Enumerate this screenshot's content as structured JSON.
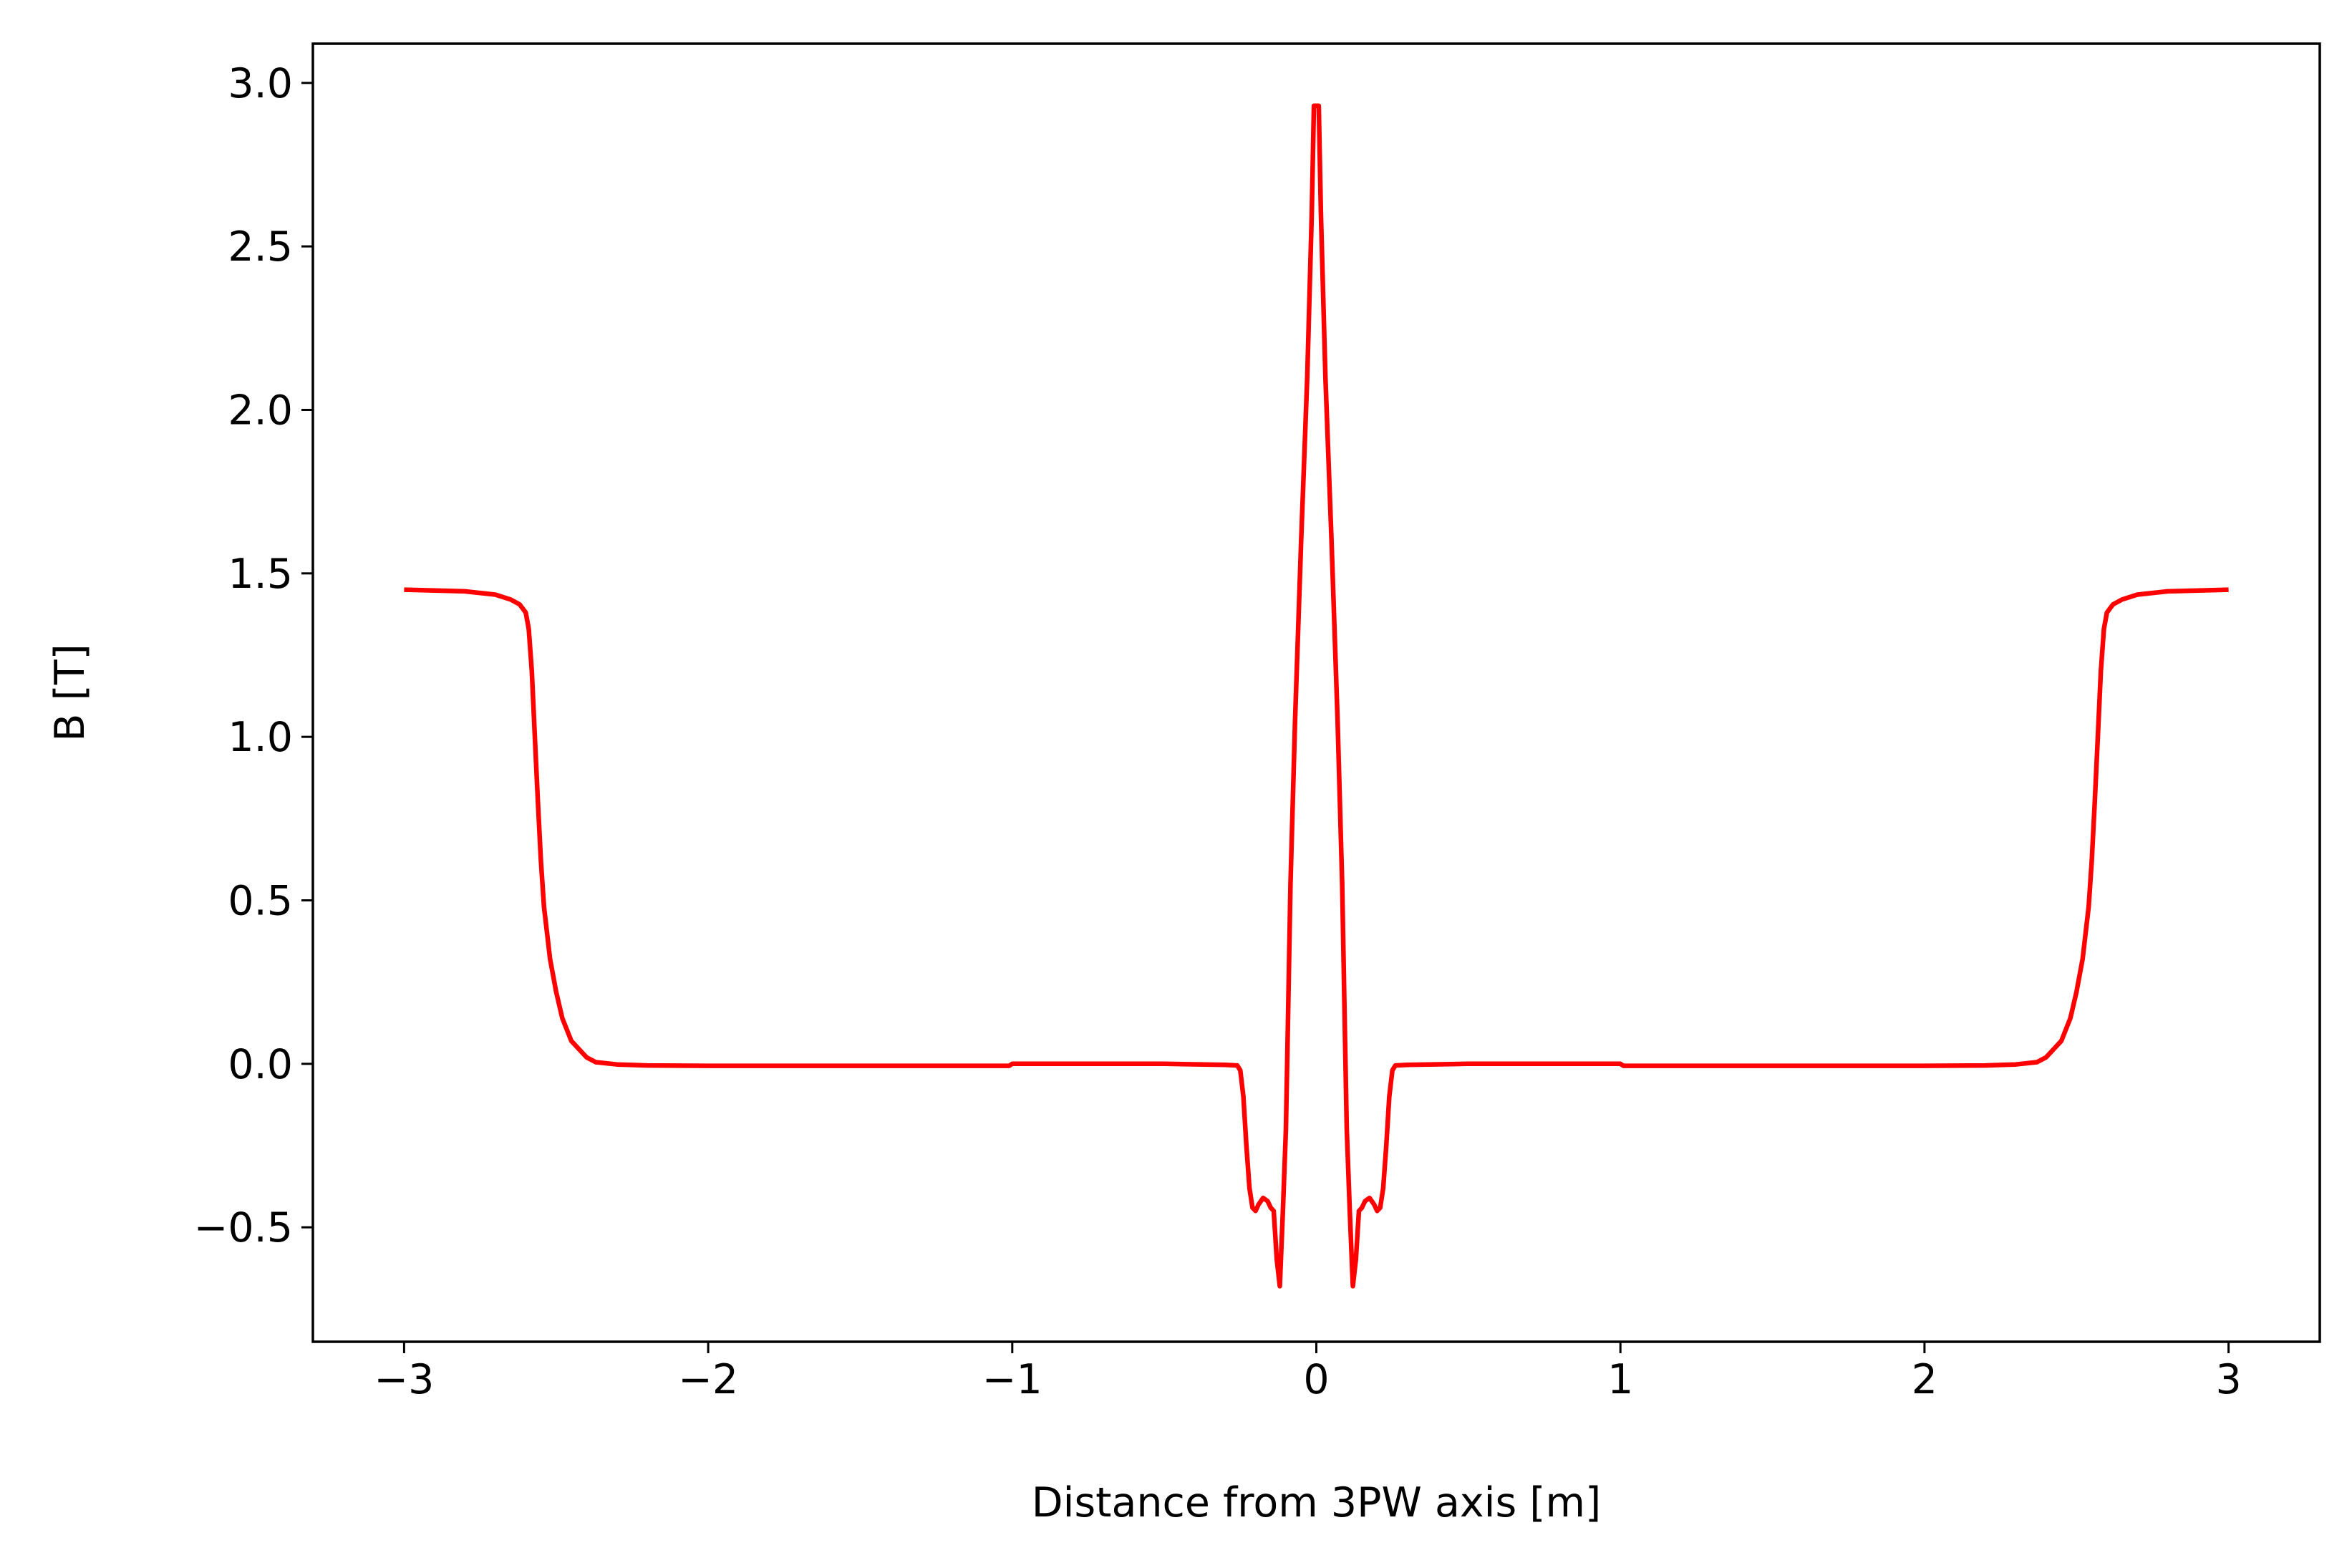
{
  "chart_data": {
    "type": "line",
    "title": "",
    "xlabel": "Distance from 3PW axis [m]",
    "ylabel": "B [T]",
    "xlim": [
      -3.3,
      3.3
    ],
    "ylim": [
      -0.85,
      3.12
    ],
    "xticks": [
      -3,
      -2,
      -1,
      0,
      1,
      2,
      3
    ],
    "xtick_labels": [
      "−3",
      "−2",
      "−1",
      "0",
      "1",
      "2",
      "3"
    ],
    "yticks": [
      -0.5,
      0.0,
      0.5,
      1.0,
      1.5,
      2.0,
      2.5,
      3.0
    ],
    "ytick_labels": [
      "−0.5",
      "0.0",
      "0.5",
      "1.0",
      "1.5",
      "2.0",
      "2.5",
      "3.0"
    ],
    "grid": false,
    "legend": "none",
    "series": [
      {
        "color": "#ff0000",
        "x": [
          -3.0,
          -2.8,
          -2.7,
          -2.65,
          -2.62,
          -2.6,
          -2.59,
          -2.58,
          -2.57,
          -2.56,
          -2.55,
          -2.54,
          -2.52,
          -2.5,
          -2.48,
          -2.45,
          -2.4,
          -2.37,
          -2.3,
          -2.2,
          -2.0,
          -1.5,
          -1.01,
          -1.0,
          -0.5,
          -0.3,
          -0.26,
          -0.25,
          -0.24,
          -0.23,
          -0.22,
          -0.21,
          -0.2,
          -0.19,
          -0.175,
          -0.16,
          -0.15,
          -0.14,
          -0.13,
          -0.12,
          -0.11,
          -0.1,
          -0.095,
          -0.09,
          -0.085,
          -0.07,
          -0.05,
          -0.03,
          -0.015,
          -0.008,
          0.0,
          0.008,
          0.015,
          0.03,
          0.05,
          0.07,
          0.085,
          0.09,
          0.095,
          0.1,
          0.11,
          0.12,
          0.13,
          0.14,
          0.15,
          0.16,
          0.175,
          0.19,
          0.2,
          0.21,
          0.22,
          0.23,
          0.24,
          0.25,
          0.26,
          0.3,
          0.5,
          1.0,
          1.01,
          1.5,
          2.0,
          2.2,
          2.3,
          2.37,
          2.4,
          2.45,
          2.48,
          2.5,
          2.52,
          2.54,
          2.55,
          2.56,
          2.57,
          2.58,
          2.59,
          2.6,
          2.62,
          2.65,
          2.7,
          2.8,
          3.0
        ],
        "y": [
          1.45,
          1.445,
          1.435,
          1.42,
          1.405,
          1.38,
          1.33,
          1.2,
          1.0,
          0.8,
          0.62,
          0.48,
          0.32,
          0.22,
          0.14,
          0.07,
          0.02,
          0.005,
          -0.002,
          -0.005,
          -0.006,
          -0.006,
          -0.006,
          0.0,
          0.0,
          -0.003,
          -0.005,
          -0.02,
          -0.1,
          -0.25,
          -0.38,
          -0.44,
          -0.45,
          -0.43,
          -0.41,
          -0.42,
          -0.44,
          -0.45,
          -0.6,
          -0.68,
          -0.45,
          -0.2,
          0.05,
          0.3,
          0.55,
          1.05,
          1.6,
          2.1,
          2.6,
          2.93,
          2.93,
          2.93,
          2.6,
          2.1,
          1.6,
          1.05,
          0.55,
          0.3,
          0.05,
          -0.2,
          -0.45,
          -0.68,
          -0.6,
          -0.45,
          -0.44,
          -0.42,
          -0.41,
          -0.43,
          -0.45,
          -0.44,
          -0.38,
          -0.25,
          -0.1,
          -0.02,
          -0.005,
          -0.003,
          0.0,
          0.0,
          -0.006,
          -0.006,
          -0.006,
          -0.005,
          -0.002,
          0.005,
          0.02,
          0.07,
          0.14,
          0.22,
          0.32,
          0.48,
          0.62,
          0.8,
          1.0,
          1.2,
          1.33,
          1.38,
          1.405,
          1.42,
          1.435,
          1.445,
          1.45
        ]
      }
    ]
  }
}
